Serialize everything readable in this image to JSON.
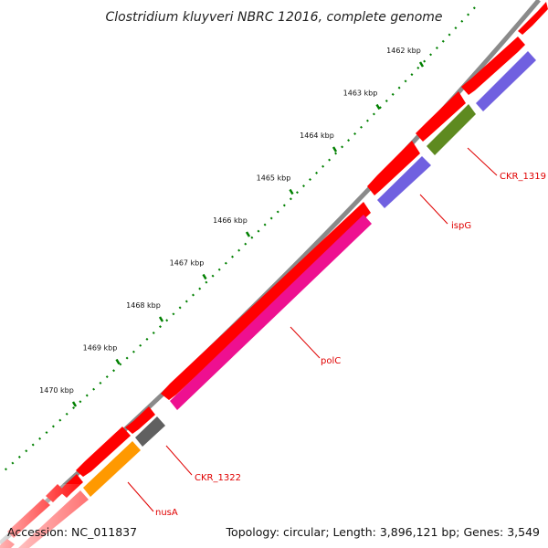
{
  "title": "Clostridium kluyveri NBRC 12016, complete genome",
  "footer": {
    "accession_label": "Accession:",
    "accession": "NC_011837",
    "topology_label": "Topology:",
    "topology": "circular",
    "length_label": "Length:",
    "length": "3,896,121 bp",
    "genes_label": "Genes:",
    "genes": "3,549"
  },
  "ruler": {
    "unit": "kbp",
    "ticks": [
      "1462 kbp",
      "1463 kbp",
      "1464 kbp",
      "1465 kbp",
      "1466 kbp",
      "1467 kbp",
      "1468 kbp",
      "1469 kbp",
      "1470 kbp"
    ]
  },
  "colors": {
    "backbone": "#808080",
    "cds_feature": "#ff0000",
    "tick": "#008000",
    "label": "#e00000",
    "polC": "#ee1090",
    "ispG": "#7060e0",
    "CKR_1319": "#5e8a20",
    "CKR_1322": "#606060",
    "nusA": "#ff9900"
  },
  "genes": [
    {
      "name": "CKR_1319",
      "color": "CKR_1319"
    },
    {
      "name": "ispG",
      "color": "ispG"
    },
    {
      "name": "polC",
      "color": "polC"
    },
    {
      "name": "CKR_1322",
      "color": "CKR_1322"
    },
    {
      "name": "nusA",
      "color": "nusA"
    }
  ]
}
